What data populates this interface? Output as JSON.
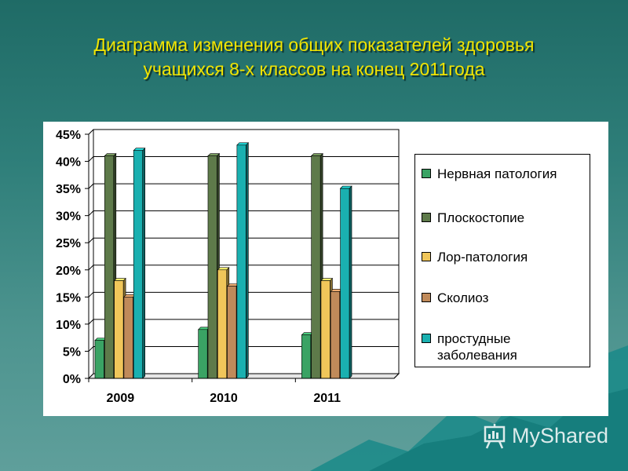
{
  "page": {
    "title_line1": "Диаграмма изменения общих показателей здоровья",
    "title_line2": "учащихся 8-х классов на конец 2011года",
    "watermark": "MyShared"
  },
  "chart_data": {
    "type": "bar",
    "categories": [
      "2009",
      "2010",
      "2011"
    ],
    "series": [
      {
        "name": "Нервная патология",
        "values": [
          7,
          9,
          8
        ],
        "color": "#3aa364"
      },
      {
        "name": "Плоскостопие",
        "values": [
          41,
          41,
          41
        ],
        "color": "#5e7a4a"
      },
      {
        "name": "Лор-патология",
        "values": [
          18,
          20,
          18
        ],
        "color": "#f0c65a"
      },
      {
        "name": "Сколиоз",
        "values": [
          15,
          17,
          16
        ],
        "color": "#c08a5a"
      },
      {
        "name": "простудные заболевания",
        "values": [
          42,
          43,
          35
        ],
        "color": "#1ab0b0"
      }
    ],
    "legend_lines": [
      [
        "Нервная патология"
      ],
      [
        "Плоскостопие"
      ],
      [
        "Лор-патология"
      ],
      [
        "Сколиоз"
      ],
      [
        "простудные",
        "заболевания"
      ]
    ],
    "yticks": [
      "0%",
      "5%",
      "10%",
      "15%",
      "20%",
      "25%",
      "30%",
      "35%",
      "40%",
      "45%"
    ],
    "ylim": [
      0,
      45
    ],
    "legend_position": "right",
    "grid": true,
    "bar_style": "3d"
  }
}
